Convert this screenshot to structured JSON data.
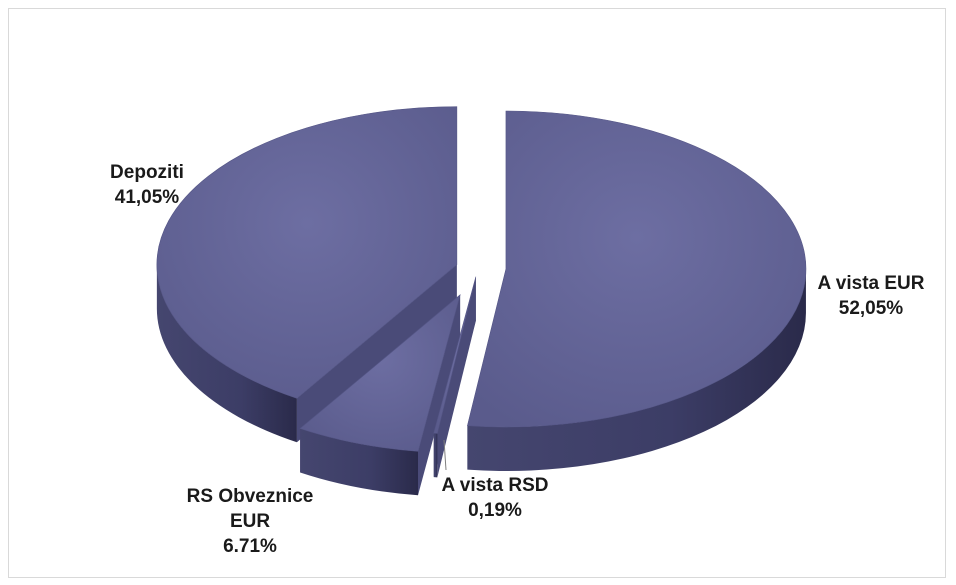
{
  "chart_data": {
    "type": "pie",
    "style": "3d-exploded",
    "title": "",
    "colors": {
      "top": "#626394",
      "side": "#3f406b"
    },
    "slices": [
      {
        "label_lines": [
          "A vista EUR"
        ],
        "percent_label": "52,05%",
        "value": 52.05
      },
      {
        "label_lines": [
          "A vista RSD"
        ],
        "percent_label": "0,19%",
        "value": 0.19
      },
      {
        "label_lines": [
          "RS Obveznice",
          "EUR"
        ],
        "percent_label": "6.71%",
        "value": 6.71
      },
      {
        "label_lines": [
          "Depoziti"
        ],
        "percent_label": "41,05%",
        "value": 41.05
      }
    ]
  }
}
